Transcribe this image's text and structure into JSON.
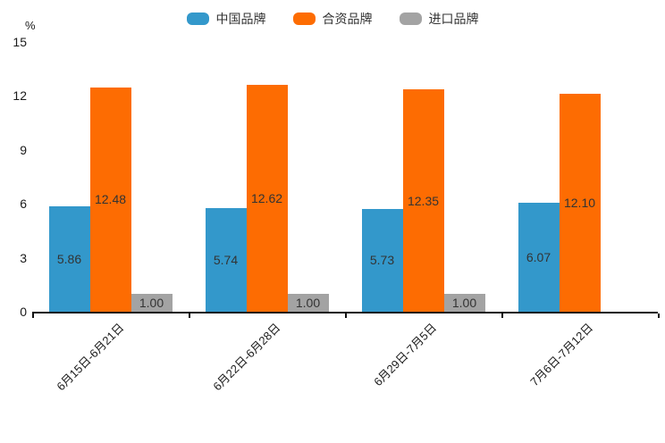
{
  "chart_data": {
    "type": "bar",
    "unit": "%",
    "categories": [
      "6月15日-6月21日",
      "6月22日-6月28日",
      "6月29日-7月5日",
      "7月6日-7月12日"
    ],
    "series": [
      {
        "name": "中国品牌",
        "color": "#3398cb",
        "values": [
          5.86,
          5.74,
          5.73,
          6.07
        ]
      },
      {
        "name": "合资品牌",
        "color": "#fd6c02",
        "values": [
          12.48,
          12.62,
          12.35,
          12.1
        ]
      },
      {
        "name": "进口品牌",
        "color": "#a3a3a3",
        "values": [
          1.0,
          1.0,
          1.0,
          null
        ]
      }
    ],
    "title": "",
    "xlabel": "",
    "ylabel": "%",
    "ylim": [
      0,
      15
    ],
    "yticks": [
      0,
      3,
      6,
      9,
      12,
      15
    ],
    "grid": false,
    "legend_position": "top",
    "value_label_decimals": 2
  },
  "colors": {
    "axis_line": "#111111",
    "tick_text": "#1a1a1a",
    "value_label_text": "#333333",
    "legend_text": "#333333",
    "background": "#ffffff"
  }
}
